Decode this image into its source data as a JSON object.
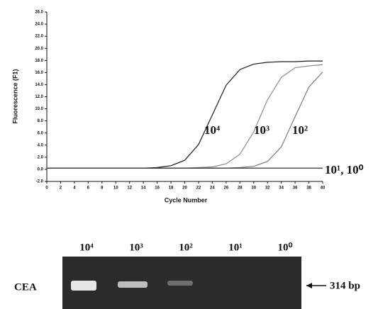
{
  "chart_data": {
    "type": "line",
    "x_label": "Cycle Number",
    "y_label": "Fluorescence (F1)",
    "x": [
      0,
      2,
      4,
      6,
      8,
      10,
      12,
      14,
      16,
      18,
      20,
      22,
      24,
      26,
      28,
      30,
      32,
      34,
      36,
      38,
      40
    ],
    "series": [
      {
        "name": "10⁴",
        "color": "#1a1a1a",
        "values": [
          0.2,
          0.2,
          0.2,
          0.2,
          0.2,
          0.2,
          0.2,
          0.2,
          0.3,
          0.6,
          1.5,
          4.1,
          9.0,
          13.9,
          16.5,
          17.4,
          17.7,
          17.8,
          17.8,
          17.9,
          17.9
        ]
      },
      {
        "name": "10³",
        "color": "#8a8a8a",
        "values": [
          0.2,
          0.2,
          0.2,
          0.2,
          0.2,
          0.2,
          0.2,
          0.2,
          0.2,
          0.2,
          0.2,
          0.3,
          0.4,
          0.9,
          2.5,
          6.2,
          11.5,
          15.2,
          16.8,
          17.1,
          17.3
        ]
      },
      {
        "name": "10²",
        "color": "#7a7a7a",
        "values": [
          0.2,
          0.2,
          0.2,
          0.2,
          0.2,
          0.2,
          0.2,
          0.2,
          0.2,
          0.2,
          0.2,
          0.2,
          0.2,
          0.2,
          0.3,
          0.5,
          1.3,
          3.7,
          8.7,
          13.6,
          16.1
        ]
      },
      {
        "name": "10¹, 10⁰",
        "color": "#333333",
        "values": [
          0.2,
          0.2,
          0.2,
          0.2,
          0.2,
          0.2,
          0.2,
          0.2,
          0.2,
          0.2,
          0.2,
          0.2,
          0.2,
          0.2,
          0.2,
          0.2,
          0.2,
          0.2,
          0.2,
          0.2,
          0.2
        ]
      }
    ],
    "xlim": [
      0,
      40
    ],
    "ylim": [
      -2,
      26
    ],
    "xticks": [
      0,
      2,
      4,
      6,
      8,
      10,
      12,
      14,
      16,
      18,
      20,
      22,
      24,
      26,
      28,
      30,
      32,
      34,
      36,
      38,
      40
    ],
    "yticks": [
      {
        "value": -2,
        "label": "-2.0"
      },
      {
        "value": 0,
        "label": "0.0"
      },
      {
        "value": 2,
        "label": "2.0"
      },
      {
        "value": 4,
        "label": "4.0"
      },
      {
        "value": 6,
        "label": "6.0"
      },
      {
        "value": 8,
        "label": "8.0"
      },
      {
        "value": 10,
        "label": "10.0"
      },
      {
        "value": 12,
        "label": "12.0"
      },
      {
        "value": 14,
        "label": "14.0"
      },
      {
        "value": 16,
        "label": "16.0"
      },
      {
        "value": 18,
        "label": "18.0"
      },
      {
        "value": 20,
        "label": "20.0"
      },
      {
        "value": 22,
        "label": "22.0"
      },
      {
        "value": 24,
        "label": "24.0"
      },
      {
        "value": 26,
        "label": "26.0"
      }
    ],
    "grid": false
  },
  "gel": {
    "lanes": [
      "10⁴",
      "10³",
      "10²",
      "10¹",
      "10⁰"
    ],
    "gene": "CEA",
    "size": "314 bp"
  }
}
